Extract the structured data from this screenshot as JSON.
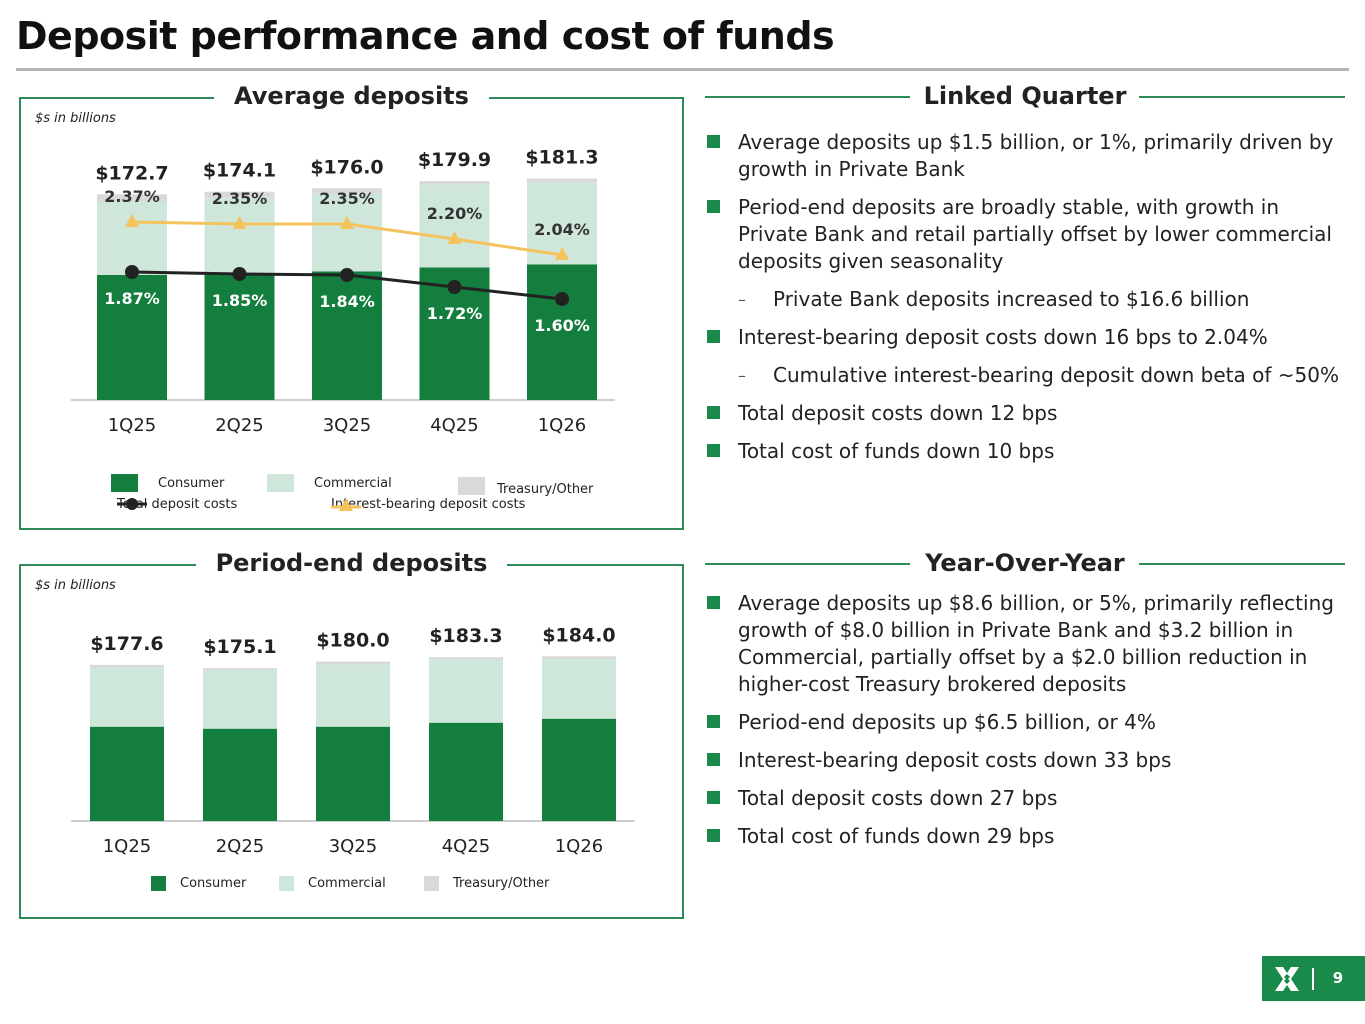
{
  "page": {
    "title": "Deposit performance and cost of funds",
    "number": "9"
  },
  "colors": {
    "consumer": "#137e3d",
    "commercial": "#cfe6da",
    "treasury": "#d9d9d9",
    "total_cost_line": "#222222",
    "interest_line": "#f5c35c",
    "accent": "#1a8a4a"
  },
  "chart_data": [
    {
      "type": "bar",
      "stacked": true,
      "title": "Average deposits",
      "units": "$s in billions",
      "categories": [
        "1Q25",
        "2Q25",
        "3Q25",
        "4Q25",
        "1Q26"
      ],
      "totals": [
        "$172.7",
        "$174.1",
        "$176.0",
        "$179.9",
        "$181.3"
      ],
      "series": [
        {
          "name": "Consumer",
          "values": [
            128.5,
            129.5,
            130.4,
            132.6,
            134.3
          ]
        },
        {
          "name": "Commercial",
          "values": [
            40.2,
            41.3,
            42.6,
            45.6,
            45.3
          ]
        },
        {
          "name": "Treasury/Other",
          "values": [
            4.0,
            3.3,
            3.0,
            1.7,
            1.7
          ]
        }
      ],
      "lines": [
        {
          "name": "Total deposit costs",
          "values": [
            1.87,
            1.85,
            1.84,
            1.72,
            1.6
          ],
          "labels": [
            "1.87%",
            "1.85%",
            "1.84%",
            "1.72%",
            "1.60%"
          ]
        },
        {
          "name": "Interest-bearing deposit costs",
          "values": [
            2.37,
            2.35,
            2.35,
            2.2,
            2.04
          ],
          "labels": [
            "2.37%",
            "2.35%",
            "2.35%",
            "2.20%",
            "2.04%"
          ]
        }
      ],
      "legend": [
        "Consumer",
        "Commercial",
        "Treasury/Other",
        "Total deposit costs",
        "Interest-bearing deposit costs"
      ]
    },
    {
      "type": "bar",
      "stacked": true,
      "title": "Period-end deposits",
      "units": "$s in billions",
      "categories": [
        "1Q25",
        "2Q25",
        "3Q25",
        "4Q25",
        "1Q26"
      ],
      "totals": [
        "$177.6",
        "$175.1",
        "$180.0",
        "$183.3",
        "$184.0"
      ],
      "series": [
        {
          "name": "Consumer",
          "values": [
            131.0,
            129.5,
            131.0,
            134.0,
            137.0
          ]
        },
        {
          "name": "Commercial",
          "values": [
            44.6,
            44.6,
            47.0,
            47.6,
            45.3
          ]
        },
        {
          "name": "Treasury/Other",
          "values": [
            2.0,
            1.0,
            2.0,
            1.7,
            1.7
          ]
        }
      ],
      "legend": [
        "Consumer",
        "Commercial",
        "Treasury/Other"
      ]
    }
  ],
  "linked_quarter": {
    "heading": "Linked Quarter",
    "bullets": [
      {
        "text": "Average deposits up $1.5 billion, or 1%, primarily driven by growth in Private Bank",
        "sub": false
      },
      {
        "text": "Period-end deposits are broadly stable, with growth in Private Bank and retail partially offset by lower commercial deposits given seasonality",
        "sub": false
      },
      {
        "text": "Private Bank deposits increased to $16.6 billion",
        "sub": true
      },
      {
        "text": "Interest-bearing deposit costs down 16 bps to 2.04%",
        "sub": false
      },
      {
        "text": "Cumulative interest-bearing deposit down beta of ~50%",
        "sub": true
      },
      {
        "text": "Total deposit costs down 12 bps",
        "sub": false
      },
      {
        "text": "Total cost of funds down 10 bps",
        "sub": false
      }
    ]
  },
  "year_over_year": {
    "heading": "Year-Over-Year",
    "bullets": [
      {
        "text": "Average deposits up $8.6 billion, or 5%, primarily reflecting growth of $8.0 billion in Private Bank and $3.2 billion in Commercial, partially offset by a $2.0 billion reduction in higher-cost Treasury brokered deposits",
        "sub": false
      },
      {
        "text": "Period-end deposits up $6.5 billion, or 4%",
        "sub": false
      },
      {
        "text": "Interest-bearing deposit costs down 33 bps",
        "sub": false
      },
      {
        "text": "Total deposit costs down 27 bps",
        "sub": false
      },
      {
        "text": "Total cost of funds down 29 bps",
        "sub": false
      }
    ]
  }
}
